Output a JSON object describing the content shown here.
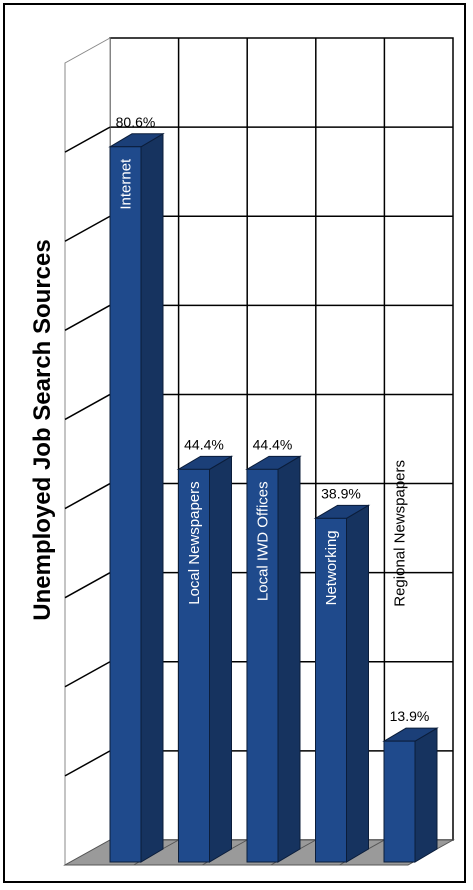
{
  "chart_data": {
    "type": "bar",
    "title": "Unemployed Job Search Sources",
    "categories": [
      "Internet",
      "Local Newspapers",
      "Local IWD Offices",
      "Networking",
      "Regional Newspapers"
    ],
    "values": [
      80.6,
      44.4,
      44.4,
      38.9,
      13.9
    ],
    "value_labels": [
      "80.6%",
      "44.4%",
      "44.4%",
      "38.9%",
      "13.9%"
    ],
    "ylim": [
      0,
      90
    ],
    "grid": true,
    "bar_color": "#1f4a8c",
    "bar_side_color": "#16335f",
    "bar_top_color": "#1b3f78",
    "floor_color": "#9a9a9a"
  }
}
